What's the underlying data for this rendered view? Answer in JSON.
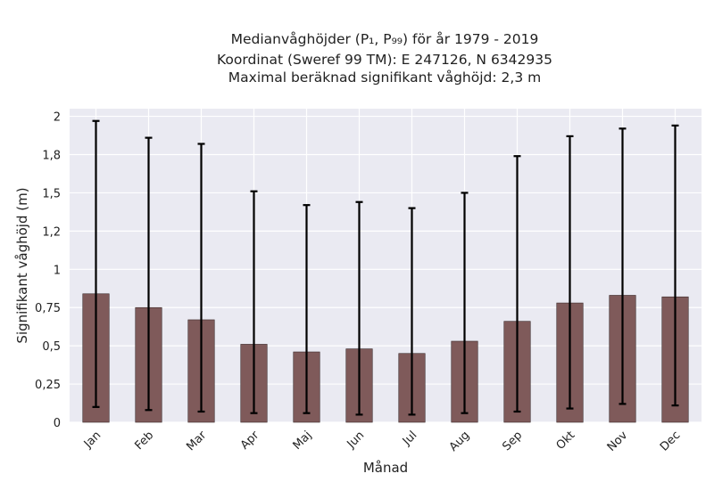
{
  "chart_data": {
    "type": "bar",
    "title_lines": [
      "Medianvåghöjder (P₁, P₉₉) för år 1979 - 2019",
      "Koordinat (Sweref 99 TM): E 247126, N 6342935",
      "Maximal beräknad signifikant våghöjd: 2,3 m"
    ],
    "xlabel": "Månad",
    "ylabel": "Signifikant våghöjd (m)",
    "categories": [
      "Jan",
      "Feb",
      "Mar",
      "Apr",
      "Maj",
      "Jun",
      "Jul",
      "Aug",
      "Sep",
      "Okt",
      "Nov",
      "Dec"
    ],
    "values": [
      0.84,
      0.75,
      0.67,
      0.51,
      0.46,
      0.48,
      0.45,
      0.53,
      0.66,
      0.78,
      0.83,
      0.82
    ],
    "p1": [
      0.1,
      0.08,
      0.07,
      0.06,
      0.06,
      0.05,
      0.05,
      0.06,
      0.07,
      0.09,
      0.12,
      0.11
    ],
    "p99": [
      1.97,
      1.86,
      1.82,
      1.51,
      1.42,
      1.44,
      1.4,
      1.5,
      1.74,
      1.87,
      1.92,
      1.94
    ],
    "ylim": [
      0,
      2.05
    ],
    "yticks": [
      0,
      0.25,
      0.5,
      0.75,
      1,
      1.25,
      1.5,
      1.75,
      2
    ],
    "ytick_labels": [
      "0",
      "0,25",
      "0,5",
      "0,75",
      "1",
      "1,2",
      "1,5",
      "1,8",
      "2"
    ],
    "grid": true,
    "colors": {
      "bar": "#7f5a5a",
      "bar_edge": "#3a2a2a",
      "errorbar": "#000000",
      "plot_bg": "#eaeaf2",
      "grid": "#ffffff"
    }
  }
}
